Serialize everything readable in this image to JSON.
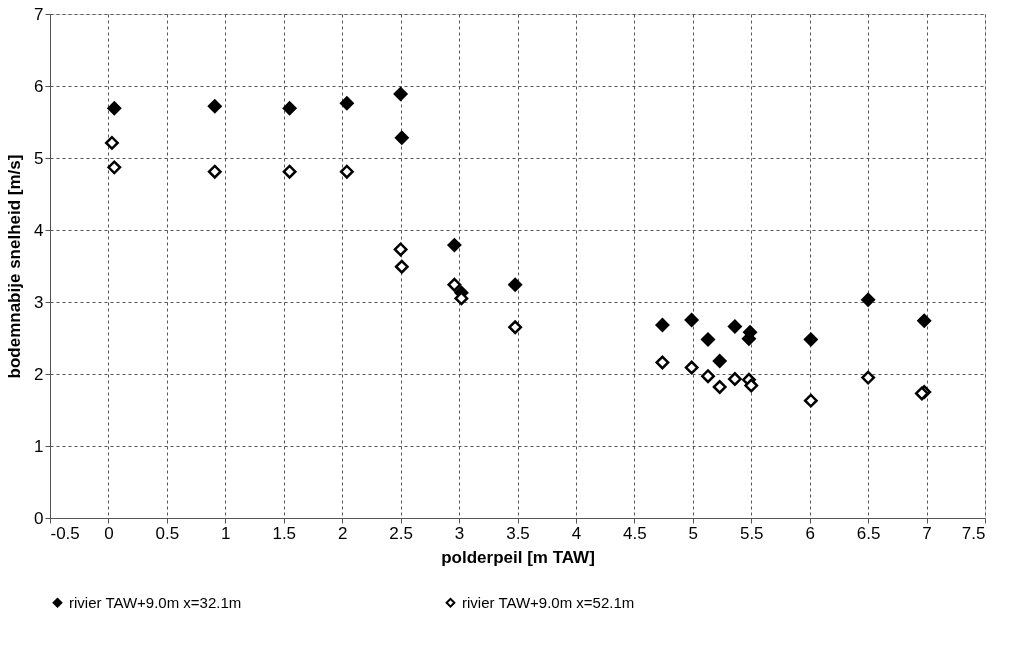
{
  "chart_data": {
    "type": "scatter",
    "xlabel": "polderpeil [m TAW]",
    "ylabel": "bodemnabije snelheid [m/s]",
    "xlim": [
      -0.5,
      7.5
    ],
    "xticks": [
      -0.5,
      0,
      0.5,
      1,
      1.5,
      2,
      2.5,
      3,
      3.5,
      4,
      4.5,
      5,
      5.5,
      6,
      6.5,
      7,
      7.5
    ],
    "ylim": [
      0,
      7
    ],
    "yticks": [
      0,
      1,
      2,
      3,
      4,
      5,
      6,
      7
    ],
    "grid": true,
    "legend": "bottom",
    "marker": "diamond",
    "series": [
      {
        "name": "rivier TAW+9.0m x=32.1m",
        "color": "#000000",
        "x": [
          0.05,
          0.91,
          1.55,
          2.04,
          2.5,
          2.51,
          2.96,
          3.02,
          3.48,
          4.74,
          4.99,
          5.13,
          5.23,
          5.36,
          5.49,
          5.48,
          6.01,
          6.5,
          6.98
        ],
        "values": [
          5.69,
          5.72,
          5.69,
          5.76,
          5.89,
          5.28,
          3.79,
          3.13,
          3.24,
          2.68,
          2.75,
          2.48,
          2.18,
          2.66,
          2.58,
          2.49,
          2.48,
          3.03,
          2.74
        ]
      },
      {
        "name": "rivier TAW+9.0m x=52.1m",
        "color": "#000000",
        "x": [
          0.03,
          0.05,
          0.91,
          1.55,
          2.04,
          2.5,
          2.51,
          2.96,
          3.02,
          3.48,
          4.74,
          4.99,
          5.13,
          5.23,
          5.36,
          5.48,
          5.5,
          6.01,
          6.5,
          6.98,
          6.96
        ],
        "values": [
          5.21,
          4.87,
          4.81,
          4.81,
          4.81,
          3.73,
          3.49,
          3.24,
          3.05,
          2.65,
          2.16,
          2.09,
          1.97,
          1.82,
          1.93,
          1.92,
          1.84,
          1.63,
          1.95,
          1.75,
          1.73
        ]
      }
    ]
  }
}
